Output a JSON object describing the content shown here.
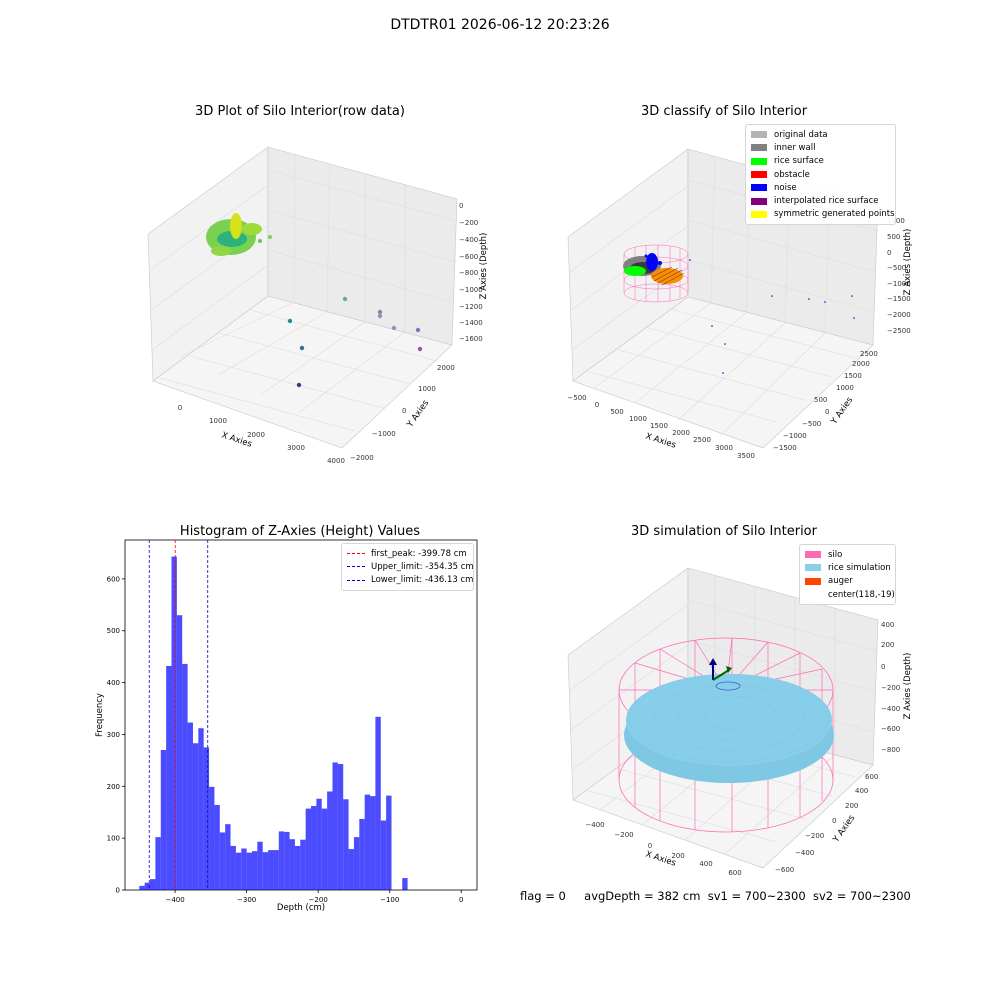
{
  "suptitle": "DTDTR01 2026-06-12 20:23:26",
  "panels": {
    "raw": {
      "title": "3D Plot of Silo Interior(row data)",
      "xlabel": "X Axies",
      "ylabel": "Y Axies",
      "zlabel": "Z Axies (Depth)",
      "xticks": [
        "0",
        "1000",
        "2000",
        "3000",
        "4000"
      ],
      "yticks": [
        "−2000",
        "−1000",
        "0",
        "1000",
        "2000"
      ],
      "zticks": [
        "0",
        "−200",
        "−400",
        "−600",
        "−800",
        "−1000",
        "−1200",
        "−1400",
        "−1600"
      ]
    },
    "classify": {
      "title": "3D classify of Silo Interior",
      "xlabel": "X Axies",
      "ylabel": "Y Axies",
      "zlabel": "Z Axies (Depth)",
      "xticks": [
        "−500",
        "0",
        "500",
        "1000",
        "1500",
        "2000",
        "2500",
        "3000",
        "3500"
      ],
      "yticks": [
        "−1500",
        "−1000",
        "−500",
        "0",
        "500",
        "1000",
        "1500",
        "2000",
        "2500"
      ],
      "zticks": [
        "1000",
        "500",
        "0",
        "−500",
        "−1000",
        "−1500",
        "−2000",
        "−2500"
      ],
      "legend": [
        {
          "label": "original data",
          "color": "#b3b3b3"
        },
        {
          "label": "inner wall",
          "color": "#808080"
        },
        {
          "label": "rice surface",
          "color": "#00ff00"
        },
        {
          "label": "obstacle",
          "color": "#ff0000"
        },
        {
          "label": "noise",
          "color": "#0000ff"
        },
        {
          "label": "interpolated rice surface",
          "color": "#800080"
        },
        {
          "label": "symmetric generated points",
          "color": "#ffff00"
        }
      ]
    },
    "simulation": {
      "title": "3D simulation of Silo Interior",
      "xlabel": "X Axies",
      "ylabel": "Y Axies",
      "zlabel": "Z Axies (Depth)",
      "xticks": [
        "−400",
        "−200",
        "0",
        "200",
        "400",
        "600"
      ],
      "yticks": [
        "−600",
        "−400",
        "−200",
        "0",
        "200",
        "400",
        "600"
      ],
      "zticks": [
        "400",
        "200",
        "0",
        "−200",
        "−400",
        "−600",
        "−800"
      ],
      "legend": [
        {
          "label": "silo",
          "color": "#ff69b4"
        },
        {
          "label": "rice simulation",
          "color": "#87ceeb"
        },
        {
          "label": "auger",
          "color": "#ff4500"
        },
        {
          "label": "center(118,-19)",
          "color": ""
        }
      ]
    }
  },
  "status": {
    "flag": "flag = 0",
    "avg_depth": "avgDepth = 382 cm",
    "sv1": "sv1 = 700~2300",
    "sv2": "sv2 = 700~2300"
  },
  "chart_data": [
    {
      "type": "scatter",
      "title": "3D Plot of Silo Interior(row data)",
      "xlabel": "X Axies",
      "ylabel": "Y Axies",
      "zlabel": "Z Axies (Depth)",
      "xlim": [
        -600,
        4000
      ],
      "ylim": [
        -2000,
        2300
      ],
      "zlim": [
        -1700,
        100
      ],
      "colormap": "viridis"
    },
    {
      "type": "scatter",
      "title": "3D classify of Silo Interior",
      "xlabel": "X Axies",
      "ylabel": "Y Axies",
      "zlabel": "Z Axies (Depth)",
      "xlim": [
        -600,
        3800
      ],
      "ylim": [
        -1700,
        2600
      ],
      "zlim": [
        -2700,
        1100
      ],
      "legend_position": "top-right"
    },
    {
      "type": "bar",
      "title": "Histogram of Z-Axies (Height) Values",
      "xlabel": "Depth (cm)",
      "ylabel": "Frequency",
      "xlim": [
        -470,
        22
      ],
      "ylim": [
        0,
        675
      ],
      "xticks": [
        -400,
        -300,
        -200,
        -100,
        0
      ],
      "yticks": [
        0,
        100,
        200,
        300,
        400,
        500,
        600
      ],
      "bin_start": -450,
      "bin_width": 7.5,
      "color": "#0000ff",
      "values": [
        8,
        14,
        21,
        102,
        270,
        432,
        643,
        530,
        436,
        323,
        283,
        312,
        275,
        199,
        164,
        111,
        127,
        85,
        72,
        80,
        72,
        75,
        93,
        73,
        77,
        77,
        113,
        112,
        98,
        85,
        97,
        157,
        162,
        176,
        157,
        190,
        246,
        243,
        175,
        79,
        102,
        137,
        184,
        181,
        334,
        134,
        182,
        0,
        0,
        23
      ],
      "vlines": [
        {
          "name": "first_peak: -399.78 cm",
          "x": -399.78,
          "color": "#ff0000"
        },
        {
          "name": "Upper_limit: -354.35 cm",
          "x": -354.35,
          "color": "#0000cc"
        },
        {
          "name": "Lower_limit: -436.13 cm",
          "x": -436.13,
          "color": "#0000cc"
        }
      ],
      "legend_position": "top-right"
    },
    {
      "type": "surface",
      "title": "3D simulation of Silo Interior",
      "xlabel": "X Axies",
      "ylabel": "Y Axies",
      "zlabel": "Z Axies (Depth)",
      "xlim": [
        -500,
        700
      ],
      "ylim": [
        -650,
        650
      ],
      "zlim": [
        -900,
        500
      ],
      "legend_position": "top-right"
    }
  ]
}
